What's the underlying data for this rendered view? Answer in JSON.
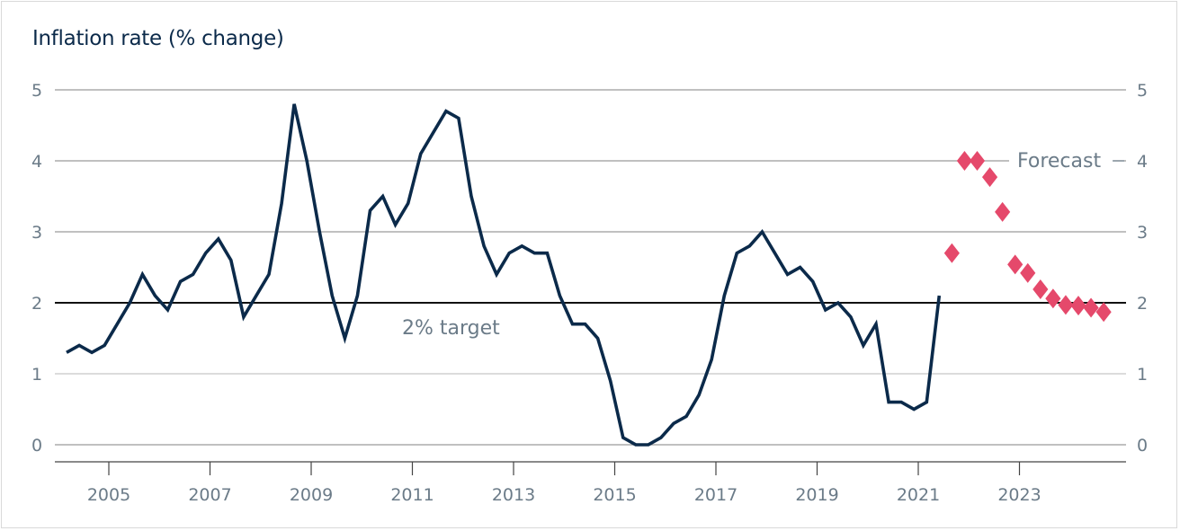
{
  "chart_data": {
    "type": "line",
    "title": "Inflation rate (% change)",
    "xlabel": "",
    "ylabel": "",
    "ylim": [
      0,
      5
    ],
    "yticks": [
      0,
      1,
      2,
      3,
      4,
      5
    ],
    "xticks": [
      "2005",
      "2007",
      "2009",
      "2011",
      "2013",
      "2015",
      "2017",
      "2019",
      "2021",
      "2023"
    ],
    "grid": true,
    "x_start": "2004 Q1",
    "frequency": "quarterly",
    "series": [
      {
        "kind": "line",
        "color": "#0b2a4a",
        "start": "2004 Q1",
        "values": [
          1.3,
          1.4,
          1.3,
          1.4,
          1.7,
          2.0,
          2.4,
          2.1,
          1.9,
          2.3,
          2.4,
          2.7,
          2.9,
          2.6,
          1.8,
          2.1,
          2.4,
          3.4,
          4.8,
          4.0,
          3.0,
          2.1,
          1.5,
          2.1,
          3.3,
          3.5,
          3.1,
          3.4,
          4.1,
          4.4,
          4.7,
          4.6,
          3.5,
          2.8,
          2.4,
          2.7,
          2.8,
          2.7,
          2.7,
          2.1,
          1.7,
          1.7,
          1.5,
          0.9,
          0.1,
          0.0,
          0.0,
          0.1,
          0.3,
          0.4,
          0.7,
          1.2,
          2.1,
          2.7,
          2.8,
          3.0,
          2.7,
          2.4,
          2.5,
          2.3,
          1.9,
          2.0,
          1.8,
          1.4,
          1.7,
          0.6,
          0.6,
          0.5,
          0.6,
          2.1
        ]
      },
      {
        "kind": "diamonds",
        "color": "#e5496b",
        "start": "2021 Q3",
        "values": [
          2.7,
          4.0,
          4.0,
          3.77,
          3.28,
          2.54,
          2.42,
          2.19,
          2.06,
          1.97,
          1.96,
          1.93,
          1.87
        ]
      }
    ],
    "reference_line": {
      "value": 2,
      "label": "2% target",
      "color": "#111111"
    },
    "annotations": [
      {
        "text": "Forecast"
      }
    ]
  }
}
